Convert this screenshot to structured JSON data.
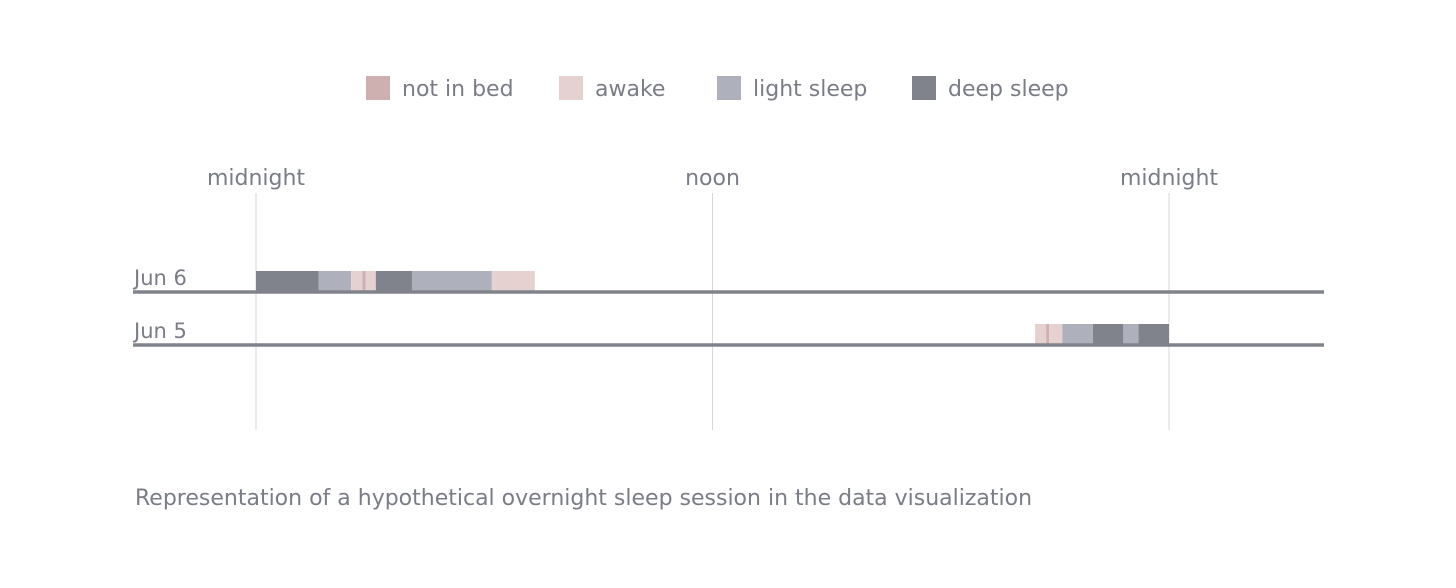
{
  "colors": {
    "not_in_bed": "#cfb0b0",
    "awake": "#e6d1d1",
    "light_sleep": "#aeb0bc",
    "deep_sleep": "#80838c",
    "axis": "#80838c",
    "gridline": "#d6d7db",
    "text": "#7a7d86"
  },
  "chart_data": {
    "type": "timeline",
    "legend": [
      {
        "key": "not_in_bed",
        "label": "not in bed"
      },
      {
        "key": "awake",
        "label": "awake"
      },
      {
        "key": "light_sleep",
        "label": "light sleep"
      },
      {
        "key": "deep_sleep",
        "label": "deep sleep"
      }
    ],
    "x_range_hours": [
      0,
      24
    ],
    "ticks": [
      {
        "hour": 0,
        "label": "midnight"
      },
      {
        "hour": 12,
        "label": "noon"
      },
      {
        "hour": 24,
        "label": "midnight"
      }
    ],
    "rows": [
      {
        "label": "Jun 6",
        "segments": [
          {
            "start": 0.0,
            "end": 1.65,
            "state": "deep_sleep"
          },
          {
            "start": 1.65,
            "end": 2.5,
            "state": "light_sleep"
          },
          {
            "start": 2.5,
            "end": 2.8,
            "state": "awake"
          },
          {
            "start": 2.8,
            "end": 2.88,
            "state": "not_in_bed"
          },
          {
            "start": 2.88,
            "end": 3.15,
            "state": "awake"
          },
          {
            "start": 3.15,
            "end": 4.1,
            "state": "deep_sleep"
          },
          {
            "start": 4.1,
            "end": 6.2,
            "state": "light_sleep"
          },
          {
            "start": 6.2,
            "end": 7.33,
            "state": "awake"
          }
        ]
      },
      {
        "label": "Jun 5",
        "segments": [
          {
            "start": 20.48,
            "end": 20.77,
            "state": "awake"
          },
          {
            "start": 20.77,
            "end": 20.85,
            "state": "not_in_bed"
          },
          {
            "start": 20.85,
            "end": 21.2,
            "state": "awake"
          },
          {
            "start": 21.2,
            "end": 22.0,
            "state": "light_sleep"
          },
          {
            "start": 22.0,
            "end": 22.8,
            "state": "deep_sleep"
          },
          {
            "start": 22.8,
            "end": 23.2,
            "state": "light_sleep"
          },
          {
            "start": 23.2,
            "end": 24.0,
            "state": "deep_sleep"
          }
        ]
      }
    ]
  },
  "caption": "Representation of a hypothetical overnight sleep session in the data visualization"
}
